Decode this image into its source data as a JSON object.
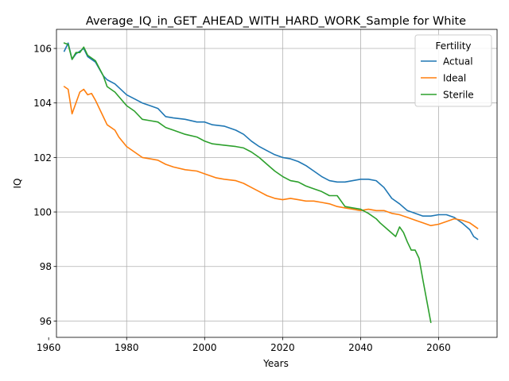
{
  "chart_data": {
    "type": "line",
    "title": "Average_IQ_in_GET_AHEAD_WITH_HARD_WORK_Sample for White",
    "xlabel": "Years",
    "ylabel": "IQ",
    "xlim": [
      1962,
      2075
    ],
    "ylim": [
      95.4,
      106.7
    ],
    "xticks": [
      1960,
      1980,
      2000,
      2020,
      2040,
      2060
    ],
    "yticks": [
      96,
      98,
      100,
      102,
      104,
      106
    ],
    "grid": true,
    "legend": {
      "title": "Fertility",
      "placement": "top-right"
    },
    "series": [
      {
        "name": "Actual",
        "color": "#1f77b4",
        "x": [
          1964,
          1965,
          1966,
          1967,
          1968,
          1969,
          1970,
          1972,
          1974,
          1975,
          1977,
          1980,
          1982,
          1984,
          1986,
          1988,
          1990,
          1992,
          1995,
          1998,
          2000,
          2002,
          2005,
          2008,
          2010,
          2012,
          2014,
          2016,
          2018,
          2020,
          2022,
          2024,
          2026,
          2028,
          2030,
          2032,
          2034,
          2036,
          2038,
          2040,
          2042,
          2044,
          2046,
          2048,
          2050,
          2052,
          2054,
          2056,
          2058,
          2060,
          2062,
          2064,
          2066,
          2068,
          2069,
          2070
        ],
        "values": [
          105.9,
          106.2,
          105.6,
          105.8,
          105.9,
          106.0,
          105.7,
          105.5,
          105.0,
          104.85,
          104.7,
          104.3,
          104.15,
          104.0,
          103.9,
          103.8,
          103.5,
          103.45,
          103.4,
          103.3,
          103.3,
          103.2,
          103.15,
          103.0,
          102.85,
          102.6,
          102.4,
          102.25,
          102.1,
          102.0,
          101.95,
          101.85,
          101.7,
          101.5,
          101.3,
          101.15,
          101.1,
          101.1,
          101.15,
          101.2,
          101.2,
          101.15,
          100.9,
          100.5,
          100.3,
          100.05,
          99.95,
          99.85,
          99.85,
          99.9,
          99.9,
          99.8,
          99.6,
          99.35,
          99.1,
          99.0
        ]
      },
      {
        "name": "Ideal",
        "color": "#ff7f0e",
        "x": [
          1964,
          1965,
          1966,
          1967,
          1968,
          1969,
          1970,
          1971,
          1972,
          1974,
          1975,
          1977,
          1978,
          1980,
          1982,
          1984,
          1986,
          1988,
          1990,
          1992,
          1995,
          1998,
          2000,
          2003,
          2005,
          2008,
          2010,
          2012,
          2014,
          2016,
          2018,
          2020,
          2022,
          2024,
          2026,
          2028,
          2030,
          2032,
          2034,
          2036,
          2038,
          2040,
          2042,
          2044,
          2046,
          2048,
          2050,
          2052,
          2054,
          2056,
          2058,
          2060,
          2062,
          2064,
          2066,
          2068,
          2070
        ],
        "values": [
          104.6,
          104.5,
          103.6,
          104.0,
          104.4,
          104.5,
          104.3,
          104.35,
          104.1,
          103.5,
          103.2,
          103.0,
          102.75,
          102.4,
          102.2,
          102.0,
          101.95,
          101.9,
          101.75,
          101.65,
          101.55,
          101.5,
          101.4,
          101.25,
          101.2,
          101.15,
          101.05,
          100.9,
          100.75,
          100.6,
          100.5,
          100.45,
          100.5,
          100.45,
          100.4,
          100.4,
          100.35,
          100.3,
          100.2,
          100.15,
          100.1,
          100.05,
          100.1,
          100.05,
          100.05,
          99.95,
          99.9,
          99.8,
          99.7,
          99.6,
          99.5,
          99.55,
          99.65,
          99.75,
          99.7,
          99.6,
          99.4
        ]
      },
      {
        "name": "Sterile",
        "color": "#2ca02c",
        "x": [
          1964,
          1965,
          1966,
          1967,
          1968,
          1969,
          1970,
          1972,
          1974,
          1975,
          1977,
          1980,
          1982,
          1984,
          1986,
          1988,
          1990,
          1992,
          1995,
          1998,
          2000,
          2002,
          2005,
          2008,
          2010,
          2012,
          2014,
          2016,
          2018,
          2020,
          2022,
          2024,
          2026,
          2028,
          2030,
          2032,
          2034,
          2036,
          2038,
          2040,
          2042,
          2044,
          2045,
          2047,
          2049,
          2050,
          2051,
          2052,
          2053,
          2054,
          2055,
          2056,
          2058
        ],
        "values": [
          106.2,
          106.15,
          105.6,
          105.85,
          105.85,
          106.05,
          105.75,
          105.55,
          105.0,
          104.6,
          104.4,
          103.9,
          103.7,
          103.4,
          103.35,
          103.3,
          103.1,
          103.0,
          102.85,
          102.75,
          102.6,
          102.5,
          102.45,
          102.4,
          102.35,
          102.2,
          102.0,
          101.75,
          101.5,
          101.3,
          101.15,
          101.1,
          100.95,
          100.85,
          100.75,
          100.6,
          100.6,
          100.2,
          100.15,
          100.1,
          99.95,
          99.75,
          99.6,
          99.35,
          99.1,
          99.45,
          99.25,
          98.9,
          98.6,
          98.6,
          98.3,
          97.5,
          95.95
        ]
      }
    ]
  }
}
